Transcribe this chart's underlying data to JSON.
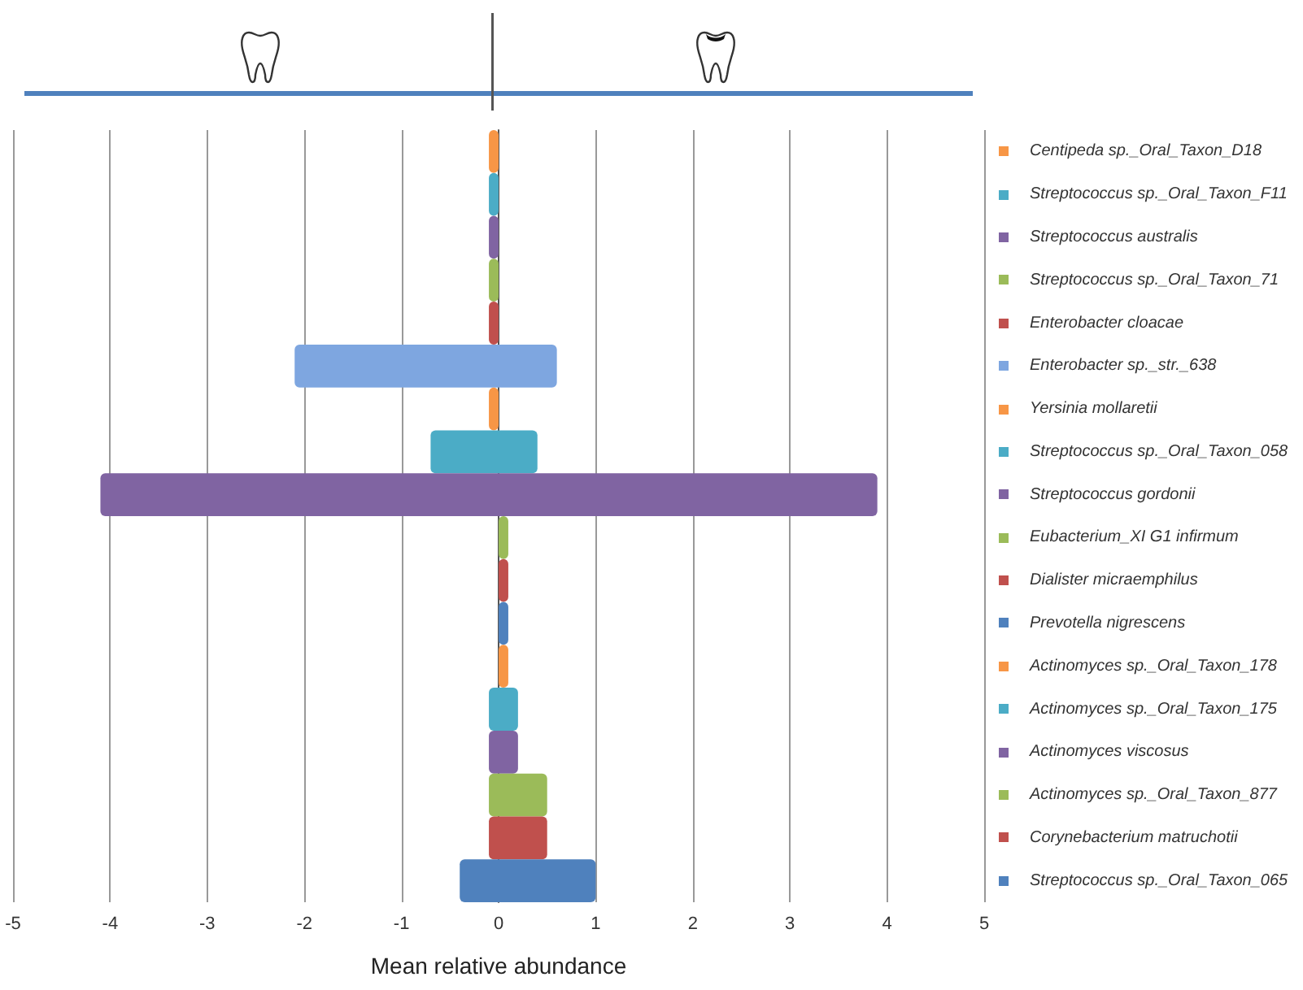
{
  "chart_data": {
    "type": "bar",
    "orientation": "horizontal",
    "xlabel": "Mean relative abundance",
    "categories": [
      "Centipeda sp._Oral_Taxon_D18",
      "Streptococcus sp._Oral_Taxon_F11",
      "Streptococcus australis",
      "Streptococcus sp._Oral_Taxon_71",
      "Enterobacter cloacae",
      "Enterobacter sp._str._638",
      "Yersinia mollaretii",
      "Streptococcus sp._Oral_Taxon_058",
      "Streptococcus gordonii",
      "Eubacterium_XI G1 infirmum",
      "Dialister micraemphilus",
      "Prevotella nigrescens",
      "Actinomyces sp._Oral_Taxon_178",
      "Actinomyces sp._Oral_Taxon_175",
      "Actinomyces viscosus",
      "Actinomyces sp._Oral_Taxon_877",
      "Corynebacterium matruchotii",
      "Streptococcus sp._Oral_Taxon_065"
    ],
    "base": [
      -0.1,
      -0.1,
      -0.1,
      -0.1,
      -0.1,
      -2.1,
      -0.1,
      -0.7,
      -4.1,
      0,
      0,
      0,
      0,
      -0.1,
      -0.1,
      -0.1,
      -0.1,
      -0.4
    ],
    "values": [
      0.1,
      0.1,
      0.1,
      0.1,
      0.1,
      2.7,
      0.1,
      1.1,
      8.0,
      0.1,
      0.1,
      0.1,
      0.1,
      0.3,
      0.3,
      0.6,
      0.6,
      1.4
    ],
    "colors": [
      "#f79646",
      "#4bacc6",
      "#8064a2",
      "#9bbb59",
      "#c0504d",
      "#7ea6e0",
      "#f79646",
      "#4bacc6",
      "#8064a2",
      "#9bbb59",
      "#c0504d",
      "#4f81bd",
      "#f79646",
      "#4bacc6",
      "#8064a2",
      "#9bbb59",
      "#c0504d",
      "#4f81bd"
    ],
    "xlim": [
      -5,
      5
    ],
    "xticks": [
      -5,
      -4,
      -3,
      -2,
      -1,
      0,
      1,
      2,
      3,
      4,
      5
    ],
    "grid": "x"
  }
}
